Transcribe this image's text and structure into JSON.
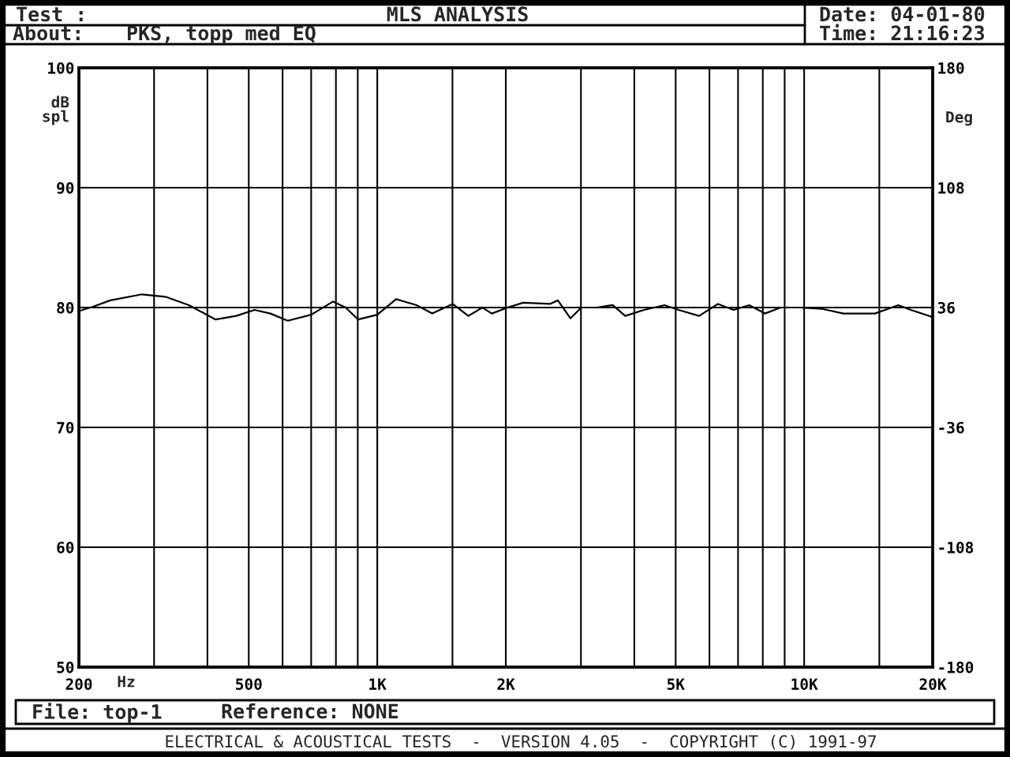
{
  "chart_data": {
    "type": "line",
    "title": "MLS ANALYSIS",
    "xlabel": "Hz",
    "ylabel": "dB\nspl",
    "y2label": "Deg",
    "annotations": [
      "Test :",
      "About:",
      "PKS, topp med EQ",
      "Date: 04-01-80",
      "Time: 21:16:23",
      "File: top-1",
      "Reference: NONE",
      "ELECTRICAL & ACOUSTICAL TESTS  -  VERSION 4.05  -  COPYRIGHT (C) 1991-97"
    ],
    "series": [
      {
        "color": "#000000",
        "x": [
          200,
          217,
          237,
          281,
          319,
          362,
          418,
          467,
          516,
          562,
          617,
          700,
          788,
          843,
          902,
          1000,
          1107,
          1236,
          1345,
          1502,
          1634,
          1763,
          1855,
          2019,
          2197,
          2538,
          2648,
          2834,
          3006,
          3271,
          3561,
          3809,
          4217,
          4708,
          5079,
          5673,
          6280,
          6834,
          7435,
          8093,
          8809,
          9831,
          10980,
          12360,
          14640,
          16620,
          17780,
          20000
        ],
        "values": [
          79.7,
          80.1,
          80.6,
          81.1,
          80.9,
          80.2,
          79.0,
          79.3,
          79.8,
          79.5,
          78.9,
          79.4,
          80.5,
          80.0,
          79.0,
          79.4,
          80.7,
          80.2,
          79.5,
          80.3,
          79.3,
          80.0,
          79.5,
          80.0,
          80.4,
          80.3,
          80.6,
          79.1,
          80.0,
          80.0,
          80.2,
          79.3,
          79.8,
          80.2,
          79.8,
          79.3,
          80.3,
          79.8,
          80.2,
          79.5,
          80.0,
          80.0,
          79.9,
          79.5,
          79.5,
          80.2,
          79.8,
          79.2
        ]
      }
    ],
    "log": "x",
    "xlim": [
      200,
      20000
    ],
    "xticks": [
      200,
      {
        "value": 300,
        "label": null
      },
      {
        "value": 400,
        "label": null
      },
      500,
      {
        "value": 600,
        "label": null
      },
      {
        "value": 700,
        "label": null
      },
      {
        "value": 800,
        "label": null
      },
      {
        "value": 900,
        "label": null
      },
      {
        "value": 1000,
        "label": "1K"
      },
      {
        "value": 1500,
        "label": null
      },
      {
        "value": 2000,
        "label": "2K"
      },
      {
        "value": 3000,
        "label": null
      },
      {
        "value": 4000,
        "label": null
      },
      {
        "value": 5000,
        "label": "5K"
      },
      {
        "value": 6000,
        "label": null
      },
      {
        "value": 7000,
        "label": null
      },
      {
        "value": 8000,
        "label": null
      },
      {
        "value": 9000,
        "label": null
      },
      {
        "value": 10000,
        "label": "10K"
      },
      {
        "value": 15000,
        "label": null
      },
      {
        "value": 20000,
        "label": "20K"
      }
    ],
    "ylim": [
      50,
      100
    ],
    "yticks": [
      50,
      60,
      70,
      80,
      90,
      100
    ],
    "y2lim": [
      -180,
      180
    ],
    "y2ticks": [
      -180,
      -108,
      -36,
      36,
      108,
      180
    ],
    "grid": true
  }
}
